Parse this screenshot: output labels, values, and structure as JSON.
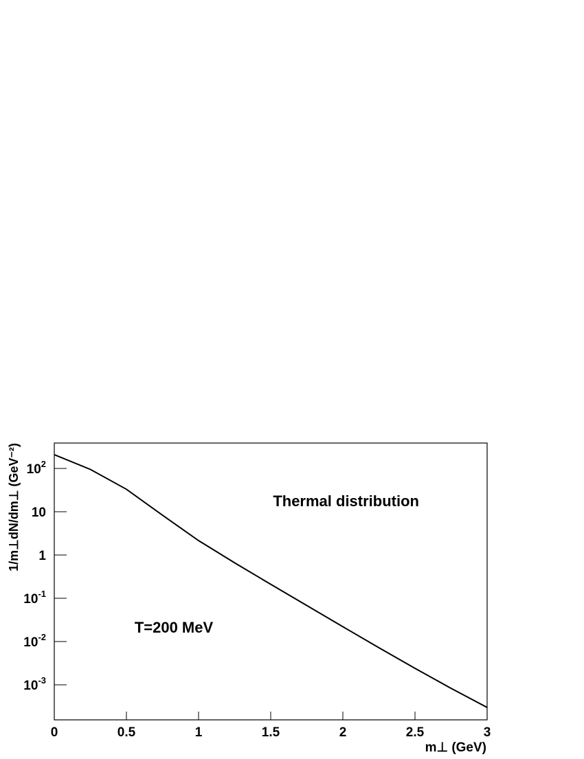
{
  "chart_data": {
    "type": "line",
    "x_label": "m⊥ (GeV)",
    "y_label": "1/m⊥dN/dm⊥ (GeV⁻²)",
    "annotations": [
      "Thermal distribution",
      "T=200 MeV"
    ],
    "x": [
      0,
      0.25,
      0.5,
      0.75,
      1,
      1.25,
      1.5,
      1.75,
      2,
      2.25,
      2.5,
      2.75,
      3
    ],
    "series": [
      {
        "color": "#000000",
        "values": [
          208,
          95,
          33,
          8.3,
          2.15,
          0.66,
          0.21,
          0.068,
          0.022,
          0.0072,
          0.0024,
          0.00083,
          0.0003
        ]
      }
    ],
    "xlim": [
      0,
      3
    ],
    "xticks": [
      0,
      0.5,
      1,
      1.5,
      2,
      2.5,
      3
    ],
    "ylim": [
      0.000155,
      386
    ],
    "log_y": true,
    "yticks": [
      {
        "value": 100,
        "label": "10",
        "sup": "2"
      },
      10,
      1,
      {
        "value": 0.1,
        "label": "10",
        "sup": "-1"
      },
      {
        "value": 0.01,
        "label": "10",
        "sup": "-2"
      },
      {
        "value": 0.001,
        "label": "10",
        "sup": "-3"
      }
    ],
    "grid": false
  }
}
